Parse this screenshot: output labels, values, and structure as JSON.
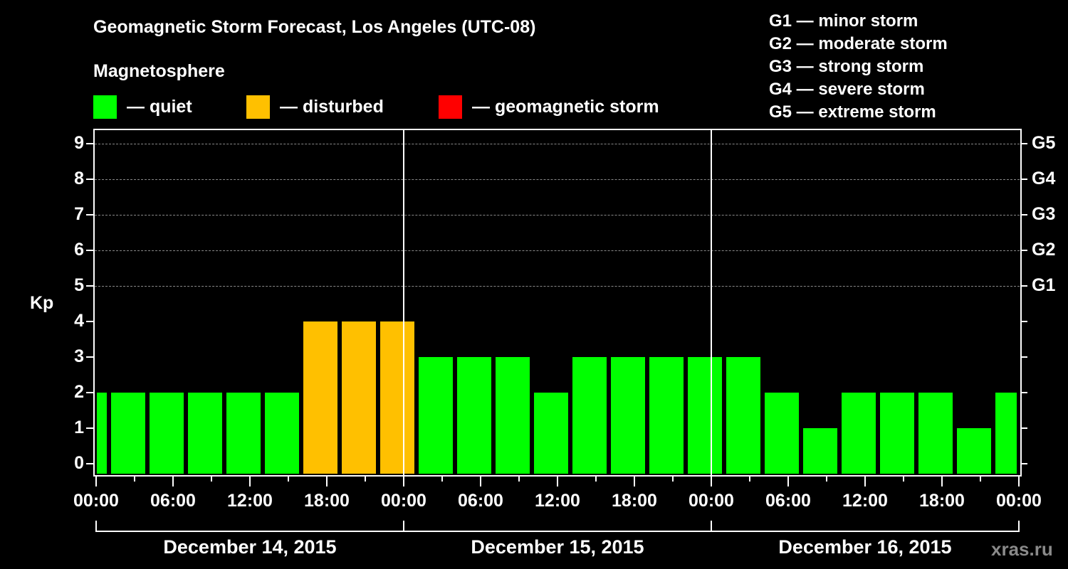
{
  "header": {
    "title": "Geomagnetic Storm Forecast, Los Angeles (UTC-08)",
    "subtitle": "Magnetosphere"
  },
  "legend": [
    {
      "label": "— quiet",
      "color": "#00ff00"
    },
    {
      "label": "— disturbed",
      "color": "#ffc000"
    },
    {
      "label": "— geomagnetic storm",
      "color": "#ff0000"
    }
  ],
  "g_scale": [
    "G1 — minor storm",
    "G2 — moderate storm",
    "G3 — strong storm",
    "G4 — severe storm",
    "G5 — extreme storm"
  ],
  "axes": {
    "ylabel": "Kp",
    "yticks": [
      "0",
      "1",
      "2",
      "3",
      "4",
      "5",
      "6",
      "7",
      "8",
      "9"
    ],
    "gticks": [
      "G1",
      "G2",
      "G3",
      "G4",
      "G5"
    ],
    "xticks": [
      "00:00",
      "06:00",
      "12:00",
      "18:00",
      "00:00",
      "06:00",
      "12:00",
      "18:00",
      "00:00",
      "06:00",
      "12:00",
      "18:00",
      "00:00"
    ],
    "dates": [
      "December 14, 2015",
      "December 15, 2015",
      "December 16, 2015"
    ]
  },
  "watermark": "xras.ru",
  "chart_data": {
    "type": "bar",
    "title": "Geomagnetic Storm Forecast, Los Angeles (UTC-08)",
    "xlabel": "",
    "ylabel": "Kp",
    "ylim": [
      0,
      9
    ],
    "grid": "dashed horizontal at Kp 5-9",
    "legend_position": "top",
    "categories": [
      "Dec14 00:00",
      "Dec14 01:00",
      "Dec14 04:00",
      "Dec14 07:00",
      "Dec14 10:00",
      "Dec14 13:00",
      "Dec14 16:00",
      "Dec14 19:00",
      "Dec14 22:00",
      "Dec15 01:00",
      "Dec15 04:00",
      "Dec15 07:00",
      "Dec15 10:00",
      "Dec15 13:00",
      "Dec15 16:00",
      "Dec15 19:00",
      "Dec15 22:00",
      "Dec16 01:00",
      "Dec16 04:00",
      "Dec16 07:00",
      "Dec16 10:00",
      "Dec16 13:00",
      "Dec16 16:00",
      "Dec16 19:00",
      "Dec16 22:00"
    ],
    "values": [
      2,
      2,
      2,
      2,
      2,
      2,
      4,
      4,
      4,
      3,
      3,
      3,
      2,
      3,
      3,
      3,
      3,
      3,
      2,
      1,
      2,
      2,
      2,
      1,
      2
    ],
    "status": [
      "quiet",
      "quiet",
      "quiet",
      "quiet",
      "quiet",
      "quiet",
      "disturbed",
      "disturbed",
      "disturbed",
      "quiet",
      "quiet",
      "quiet",
      "quiet",
      "quiet",
      "quiet",
      "quiet",
      "quiet",
      "quiet",
      "quiet",
      "quiet",
      "quiet",
      "quiet",
      "quiet",
      "quiet",
      "quiet"
    ],
    "right_axis": {
      "G1": 5,
      "G2": 6,
      "G3": 7,
      "G4": 8,
      "G5": 9
    }
  }
}
